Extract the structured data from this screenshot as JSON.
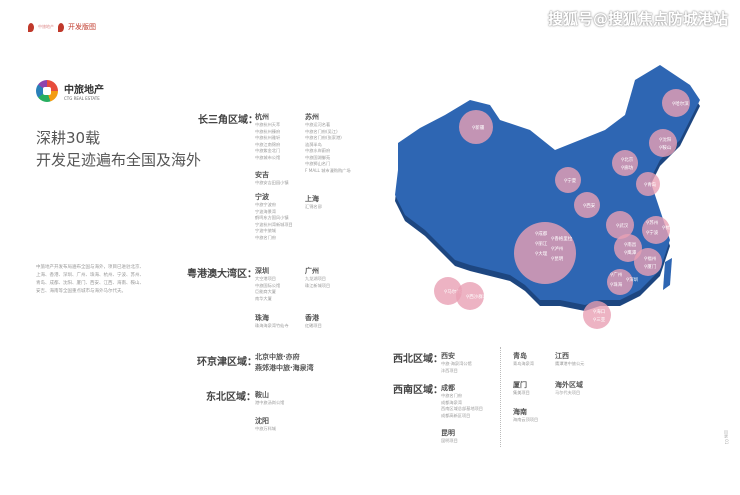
{
  "header": {
    "brand_small": "中旅地产",
    "section_title": "开发版图"
  },
  "watermark": "搜狐号@搜狐焦点防城港站",
  "logo": {
    "cn": "中旅地产",
    "en": "CTG REAL ESTATE"
  },
  "title": {
    "line1": "深耕30载",
    "line2": "开发足迹遍布全国及海外"
  },
  "intro": "中旅地产开发布局遍布全国与海外，项目已进驻北京、上海、香港、深圳、广州、珠海、杭州、宁波、苏州、青岛、成都、沈阳、厦门、西安、江西、海南、鞍山、安吉、海南等全国重点城市与海外马尔代夫。",
  "regions": {
    "yrd": {
      "label": "长三角区域：",
      "hangzhou": {
        "city": "杭州",
        "projects": [
          "中旅杭州天萃",
          "中旅杭州臻府",
          "中旅杭州雅轩",
          "中旅江南锦府",
          "中旅紫金北门",
          "中旅城市公馆"
        ]
      },
      "suzhou": {
        "city": "苏州",
        "projects": [
          "中旅运河名著",
          "中旅名门府(吴江)",
          "中旅名门府(张家港)",
          "涟漪半岛",
          "中旅水岸蔚府",
          "中旅国湖御苑",
          "中旅狮山名门",
          "F MALL 城市漫购购广场"
        ]
      },
      "anji": {
        "city": "安吉",
        "projects": [
          "中旅安吉田园小镇"
        ]
      },
      "ningbo": {
        "city": "宁波",
        "projects": [
          "中旅宁波府",
          "宁波海景湾",
          "鹤鸣东方国风小镇",
          "宁波杭州湾新城项目",
          "宁波中旅城",
          "中旅名门府"
        ]
      },
      "shanghai": {
        "city": "上海",
        "projects": [
          "汇锦名邸"
        ]
      }
    },
    "gba": {
      "label": "粤港澳大湾区：",
      "shenzhen": {
        "city": "深圳",
        "projects": [
          "大空港项目",
          "中旅国际公馆",
          "巨能商大厦",
          "南华大厦"
        ]
      },
      "guangzhou": {
        "city": "广州",
        "projects": [
          "九龙湖项目",
          "珠江新城项目"
        ]
      },
      "zhuhai": {
        "city": "珠海",
        "projects": [
          "珠海海泉湾竹仙寺"
        ]
      },
      "hongkong": {
        "city": "香港",
        "projects": [
          "红磡项目"
        ]
      }
    },
    "jjj": {
      "label": "环京津区域：",
      "lines": [
        "北京中旅·亦府",
        "燕郊港中旅·海泉湾"
      ]
    },
    "ne": {
      "label": "东北区域：",
      "anshan": {
        "city": "鞍山",
        "projects": [
          "港中旅汤岗公馆"
        ]
      },
      "shenyang": {
        "city": "沈阳",
        "projects": [
          "中旅万科城"
        ]
      }
    },
    "nw": {
      "label": "西北区域：",
      "xian": {
        "city": "西安",
        "projects": [
          "中旅·海泉湾公馆",
          "沣西项目"
        ]
      }
    },
    "sw": {
      "label": "西南区域：",
      "chengdu": {
        "city": "成都",
        "projects": [
          "中旅名门府",
          "成都海泉湾",
          "西南区域总部基地项目",
          "成都高新区项目"
        ]
      },
      "kunming": {
        "city": "昆明",
        "projects": [
          "昆明项目"
        ]
      }
    },
    "others": {
      "qingdao": {
        "city": "青岛",
        "projects": [
          "青岛海泉湾"
        ]
      },
      "jiangxi": {
        "city": "江西",
        "projects": [
          "鹰潭港中旅公元"
        ]
      },
      "xiamen": {
        "city": "厦门",
        "projects": [
          "集美项目"
        ]
      },
      "overseas": {
        "city": "海外区域",
        "projects": [
          "马尔代夫项目"
        ]
      },
      "hainan": {
        "city": "海南",
        "projects": [
          "海南云顶项目"
        ]
      }
    }
  },
  "map": {
    "colors": {
      "land": "#2e66b3",
      "side": "#1d4680",
      "bubble": "#e8a0b4"
    },
    "bubbles": [
      {
        "name": "新疆",
        "labels": [
          "新疆"
        ]
      },
      {
        "name": "哈尔滨",
        "labels": [
          "哈尔滨"
        ]
      },
      {
        "name": "东北",
        "labels": [
          "沈阳",
          "鞍山"
        ]
      },
      {
        "name": "京津",
        "labels": [
          "北京",
          "廊坊"
        ]
      },
      {
        "name": "青岛",
        "labels": [
          "青岛"
        ]
      },
      {
        "name": "宁夏",
        "labels": [
          "宁夏"
        ]
      },
      {
        "name": "西安",
        "labels": [
          "西安"
        ]
      },
      {
        "name": "武汉",
        "labels": [
          "武汉"
        ]
      },
      {
        "name": "西南",
        "labels": [
          "成都",
          "香格里拉",
          "丽江",
          "泸州",
          "大理",
          "昆明"
        ]
      },
      {
        "name": "江西",
        "labels": [
          "南昌",
          "鹰潭"
        ]
      },
      {
        "name": "长三角",
        "labels": [
          "苏州",
          "杭州",
          "宁波"
        ]
      },
      {
        "name": "福建",
        "labels": [
          "福州",
          "厦门"
        ]
      },
      {
        "name": "华南",
        "labels": [
          "广州",
          "深圳",
          "珠海"
        ]
      },
      {
        "name": "海南",
        "labels": [
          "海口",
          "三亚"
        ]
      },
      {
        "name": "马尔代夫",
        "labels": [
          "马尔代夫"
        ]
      },
      {
        "name": "西沙",
        "labels": [
          "西沙群岛"
        ]
      }
    ]
  },
  "pager": "目录 01"
}
